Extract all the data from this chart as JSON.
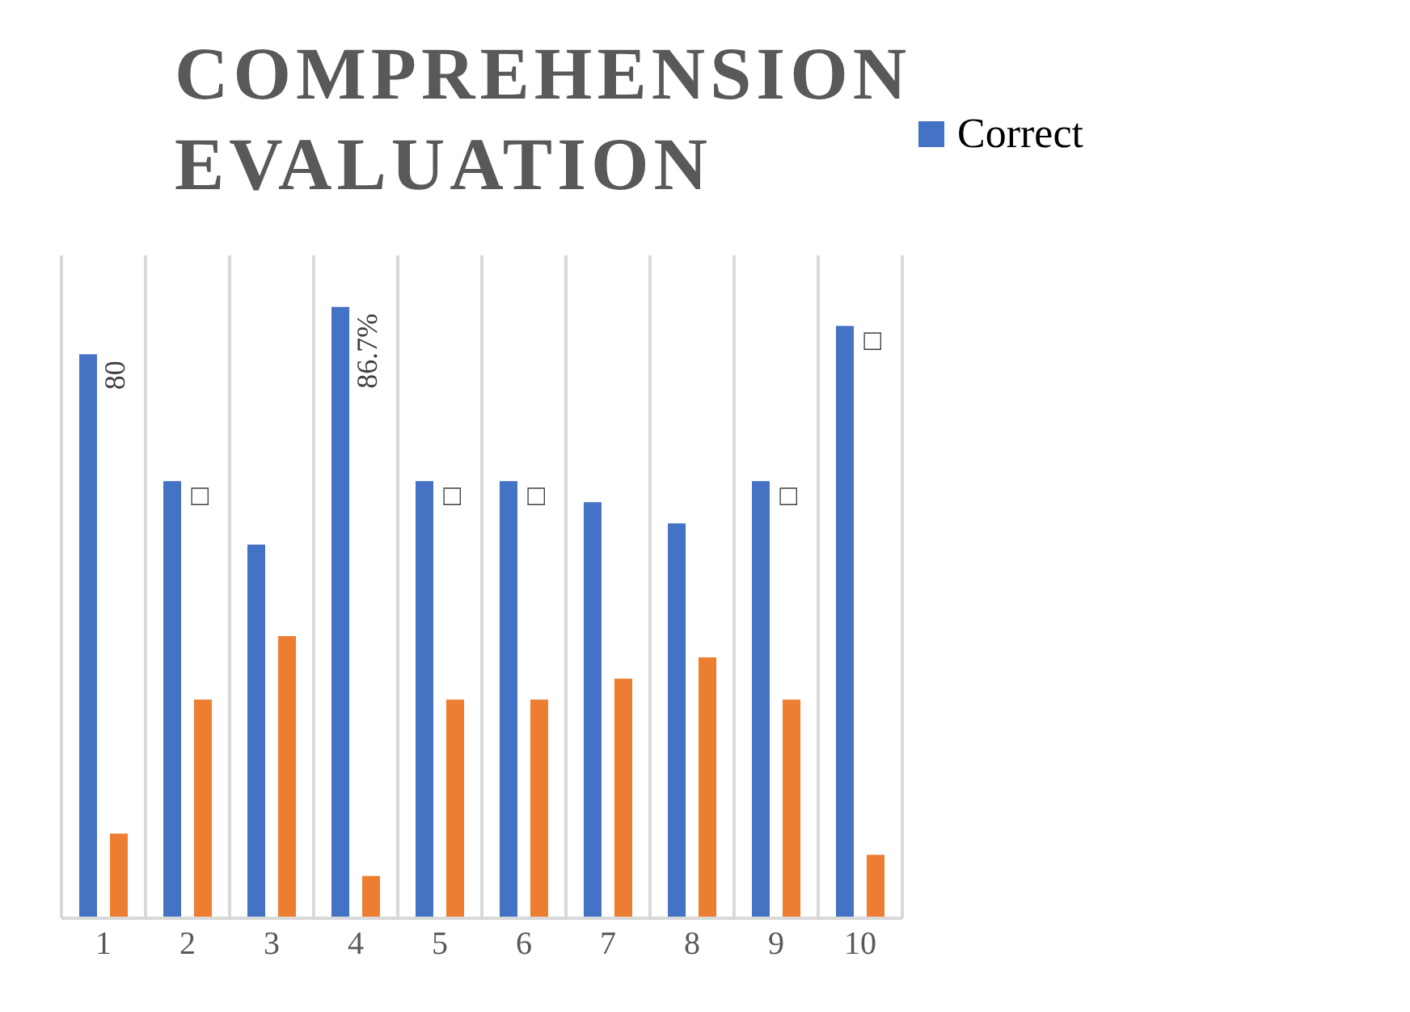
{
  "chart_data": {
    "type": "bar",
    "title": "COMPREHENSION EVALUATION",
    "categories": [
      "1",
      "2",
      "3",
      "4",
      "5",
      "6",
      "7",
      "8",
      "9",
      "10"
    ],
    "series": [
      {
        "name": "Correct",
        "color": "#4472c4",
        "values": [
          80,
          62,
          53,
          86.7,
          62,
          62,
          59,
          56,
          62,
          84
        ],
        "value_labels": [
          "80",
          "□",
          null,
          "86.7%",
          "□",
          "□",
          null,
          null,
          "□",
          "□"
        ]
      },
      {
        "color": "#ed7d31",
        "values": [
          12,
          31,
          40,
          6,
          31,
          31,
          34,
          37,
          31,
          9
        ]
      }
    ],
    "ylim": [
      0,
      94
    ],
    "tick_labels": "x",
    "grid": "x",
    "legend": "top right"
  }
}
